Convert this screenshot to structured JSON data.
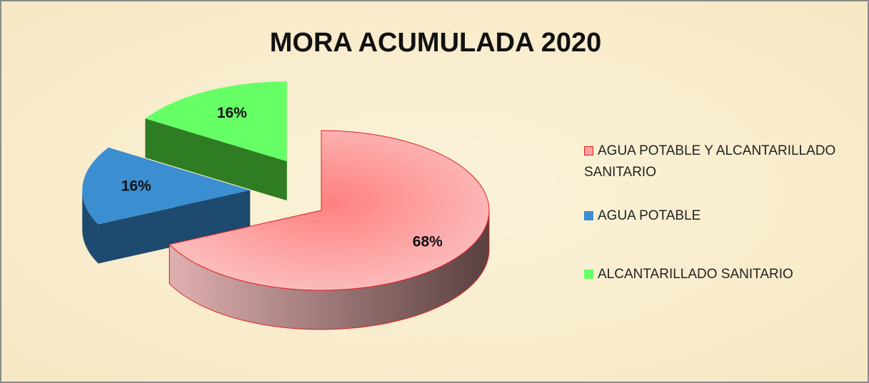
{
  "chart_data": {
    "type": "pie",
    "title": "MORA ACUMULADA  2020",
    "categories": [
      "AGUA POTABLE Y ALCANTARILLADO SANITARIO",
      "AGUA POTABLE",
      "ALCANTARILLADO SANITARIO"
    ],
    "values": [
      68,
      16,
      16
    ],
    "value_labels": [
      "68%",
      "16%",
      "16%"
    ],
    "colors": [
      "#f9a3a3",
      "#3b8fd1",
      "#66ff66"
    ],
    "legend": "right"
  }
}
